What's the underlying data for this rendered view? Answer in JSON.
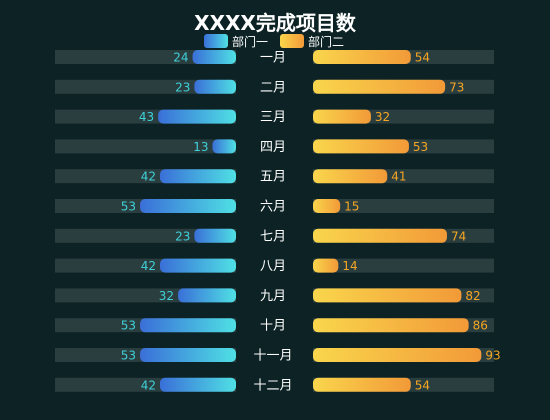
{
  "chart_data": {
    "type": "bar",
    "title": "XXXX完成项目数",
    "categories": [
      "一月",
      "二月",
      "三月",
      "四月",
      "五月",
      "六月",
      "七月",
      "八月",
      "九月",
      "十月",
      "十一月",
      "十二月"
    ],
    "series": [
      {
        "name": "部门一",
        "values": [
          24,
          23,
          43,
          13,
          42,
          53,
          23,
          42,
          32,
          53,
          53,
          42
        ],
        "gradient": [
          "#3a6fd8",
          "#4fe0e4"
        ]
      },
      {
        "name": "部门二",
        "values": [
          54,
          73,
          32,
          53,
          41,
          15,
          74,
          14,
          82,
          86,
          93,
          54
        ],
        "gradient": [
          "#f9d64c",
          "#f29a38"
        ]
      }
    ],
    "xlim": [
      0,
      100
    ],
    "legend_position": "top-center",
    "colors": {
      "background": "#0c2224",
      "track": "#2a3e40",
      "left_value_text": "#3fd0d8",
      "right_value_text": "#f5a623"
    }
  }
}
